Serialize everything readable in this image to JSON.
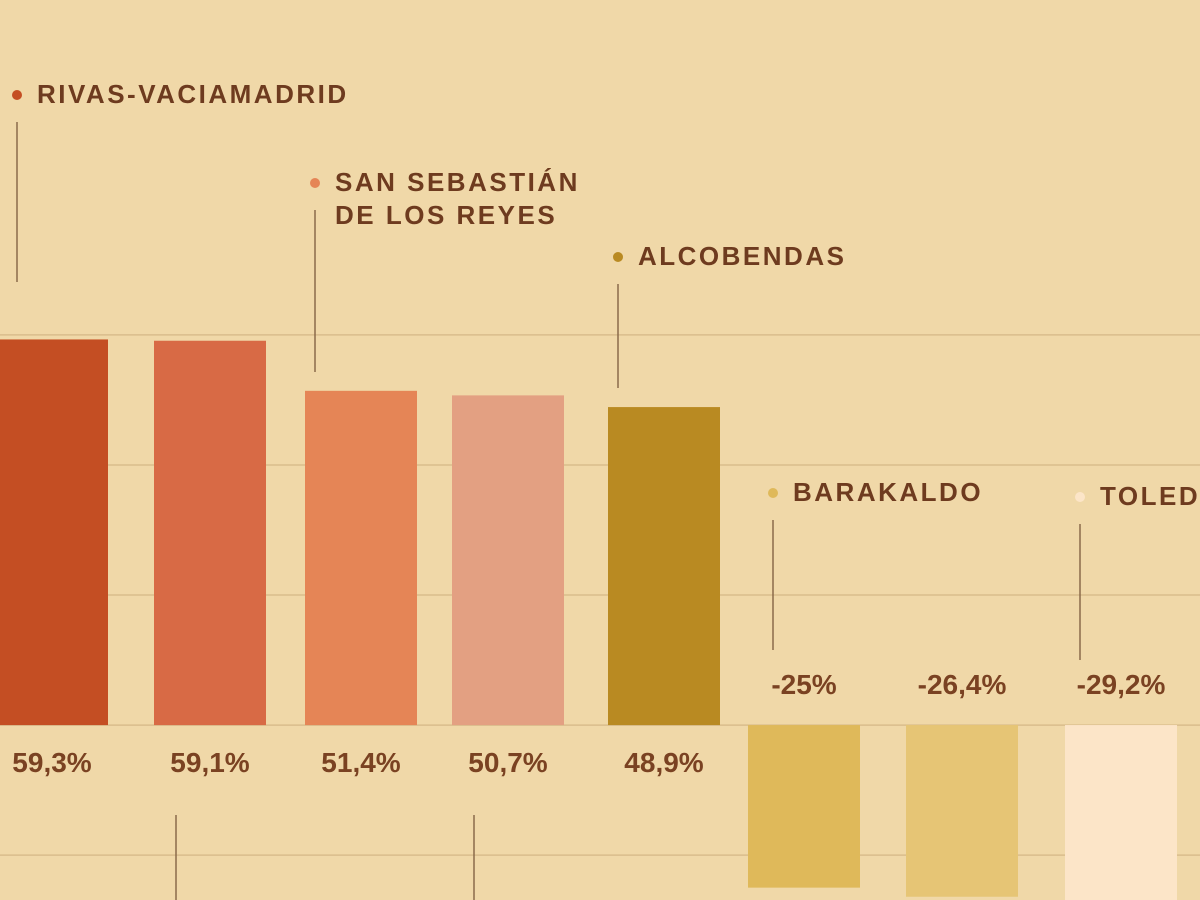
{
  "chart_data": {
    "type": "bar",
    "categories": [
      "RIVAS-VACIAMADRID",
      null,
      "SAN SEBASTIÁN DE LOS REYES",
      null,
      "ALCOBENDAS",
      "BARAKALDO",
      null,
      "TOLED"
    ],
    "values": [
      59.3,
      59.1,
      51.4,
      50.7,
      48.9,
      -25,
      -26.4,
      -29.2
    ],
    "value_labels": [
      "59,3%",
      "59,1%",
      "51,4%",
      "50,7%",
      "48,9%",
      "-25%",
      "-26,4%",
      "-29,2%"
    ],
    "colors": [
      "#c44e23",
      "#d86a45",
      "#e58556",
      "#e3a082",
      "#b98a22",
      "#dfb95a",
      "#e6c575",
      "#fce5c8"
    ],
    "ylim": [
      -26.9,
      111.5
    ],
    "yticks": [
      -20,
      0,
      20,
      40,
      60
    ],
    "grid": true
  }
}
